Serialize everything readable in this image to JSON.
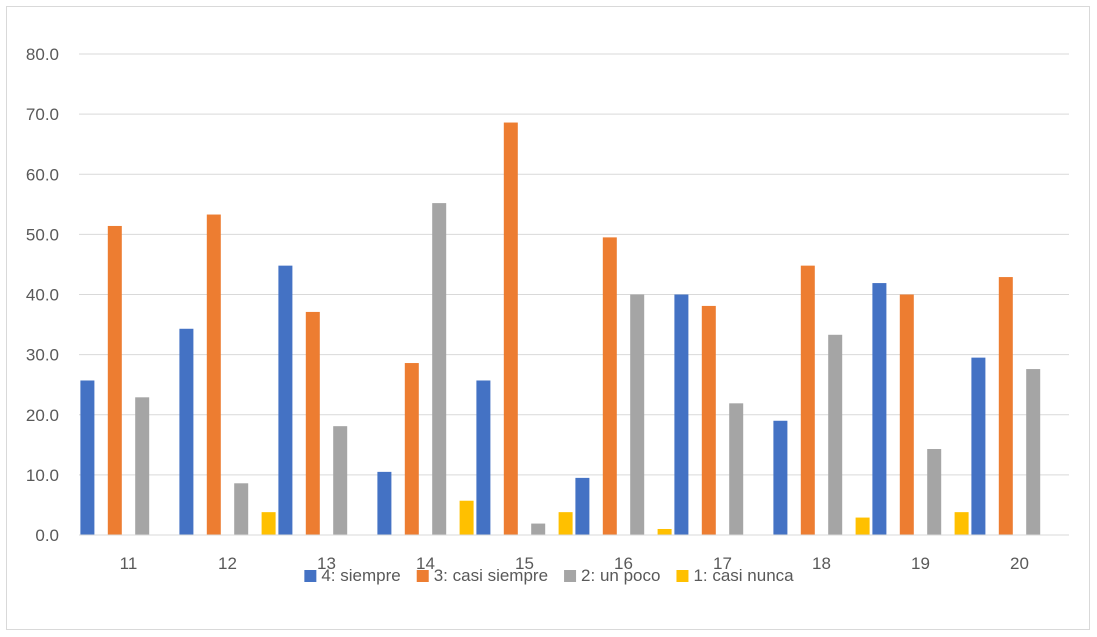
{
  "chart_data": {
    "type": "bar",
    "title": "",
    "xlabel": "",
    "ylabel": "",
    "categories": [
      "11",
      "12",
      "13",
      "14",
      "15",
      "16",
      "17",
      "18",
      "19",
      "20"
    ],
    "ylim": [
      0,
      80
    ],
    "yticks": [
      "0.0",
      "10.0",
      "20.0",
      "30.0",
      "40.0",
      "50.0",
      "60.0",
      "70.0",
      "80.0"
    ],
    "grid": true,
    "legend_position": "bottom",
    "series": [
      {
        "name": "4: siempre",
        "color": "#4472C4",
        "values": [
          25.7,
          34.3,
          44.8,
          10.5,
          25.7,
          9.5,
          40.0,
          19.0,
          41.9,
          29.5
        ]
      },
      {
        "name": "3: casi siempre",
        "color": "#ED7D31",
        "values": [
          51.4,
          53.3,
          37.1,
          28.6,
          68.6,
          49.5,
          38.1,
          44.8,
          40.0,
          42.9
        ]
      },
      {
        "name": "2: un poco",
        "color": "#A5A5A5",
        "values": [
          22.9,
          8.6,
          18.1,
          55.2,
          1.9,
          40.0,
          21.9,
          33.3,
          14.3,
          27.6
        ]
      },
      {
        "name": "1: casi nunca",
        "color": "#FFC000",
        "values": [
          0.0,
          3.8,
          0.0,
          5.7,
          3.8,
          1.0,
          0.0,
          2.9,
          3.8,
          0.0
        ]
      }
    ]
  }
}
